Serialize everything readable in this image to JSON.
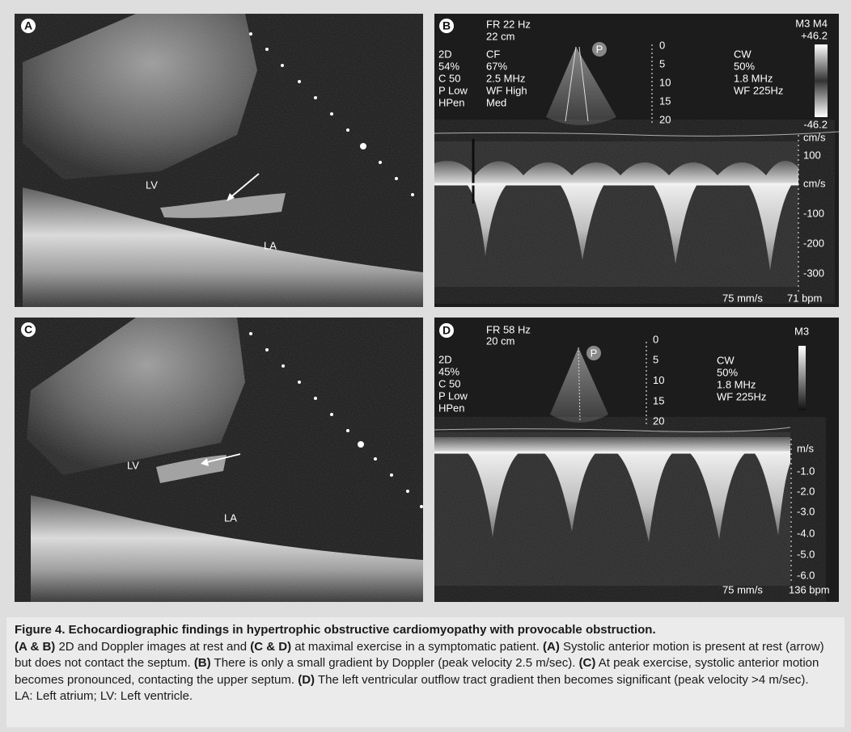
{
  "panels": [
    {
      "label": "A",
      "annotations": [
        "LV",
        "LA"
      ]
    },
    {
      "label": "B",
      "header": [
        "FR 22 Hz",
        "22 cm"
      ],
      "settings_2d": [
        "2D",
        "54%",
        "C 50",
        "P Low",
        "HPen"
      ],
      "settings_cf": [
        "CF",
        "67%",
        "2.5 MHz",
        "WF High",
        "Med"
      ],
      "probe": "P",
      "depth_scale": [
        "0",
        "5",
        "10",
        "15",
        "20"
      ],
      "map": [
        "M3 M4",
        "+46.2",
        "-46.2"
      ],
      "settings_cw": [
        "CW",
        "50%",
        "1.8 MHz",
        "WF 225Hz"
      ],
      "velocity_scale": [
        "cm/s",
        "100",
        "cm/s",
        "-100",
        "-200",
        "-300"
      ],
      "sweep": "75 mm/s",
      "heart_rate": "71 bpm"
    },
    {
      "label": "C",
      "annotations": [
        "LV",
        "LA"
      ]
    },
    {
      "label": "D",
      "header": [
        "FR 58 Hz",
        "20 cm"
      ],
      "settings_2d": [
        "2D",
        "45%",
        "C 50",
        "P Low",
        "HPen"
      ],
      "probe": "P",
      "depth_scale": [
        "0",
        "5",
        "10",
        "15",
        "20"
      ],
      "map": [
        "M3"
      ],
      "settings_cw": [
        "CW",
        "50%",
        "1.8 MHz",
        "WF 225Hz"
      ],
      "velocity_scale": [
        "m/s",
        "-1.0",
        "-2.0",
        "-3.0",
        "-4.0",
        "-5.0",
        "-6.0"
      ],
      "sweep": "75 mm/s",
      "heart_rate": "136 bpm"
    }
  ],
  "caption": {
    "title": "Figure 4. Echocardiographic findings in hypertrophic obstructive cardiomyopathy with provocable obstruction.",
    "body": [
      {
        "text": "(A & B)",
        "bold": true
      },
      {
        "text": " 2D and Doppler images at rest and ",
        "bold": false
      },
      {
        "text": "(C & D)",
        "bold": true
      },
      {
        "text": " at maximal exercise in a symptomatic patient. ",
        "bold": false
      },
      {
        "text": "(A)",
        "bold": true
      },
      {
        "text": " Systolic anterior motion is present at rest (arrow) but does not contact the septum. ",
        "bold": false
      },
      {
        "text": "(B)",
        "bold": true
      },
      {
        "text": " There is only a small gradient by Doppler (peak velocity 2.5 m/sec). ",
        "bold": false
      },
      {
        "text": "(C)",
        "bold": true
      },
      {
        "text": " At peak exercise, systolic anterior motion becomes pronounced, contacting the upper septum. ",
        "bold": false
      },
      {
        "text": "(D)",
        "bold": true
      },
      {
        "text": " The left ventricular outflow tract gradient then becomes significant (peak velocity >4 m/sec).",
        "bold": false
      }
    ],
    "abbreviations": "LA: Left atrium; LV: Left ventricle."
  }
}
